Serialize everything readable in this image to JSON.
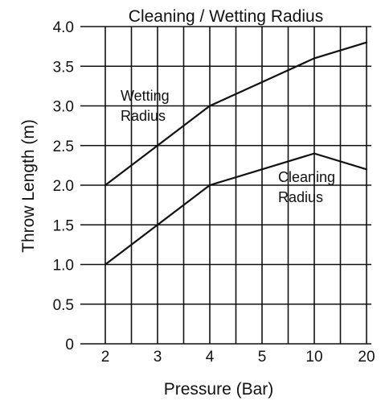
{
  "chart_data": {
    "type": "line",
    "title": "Cleaning / Wetting Radius",
    "xlabel": "Pressure (Bar)",
    "ylabel": "Throw Length (m)",
    "categories": [
      "2",
      "3",
      "4",
      "5",
      "10",
      "20"
    ],
    "ylim": [
      0,
      4.0
    ],
    "yticks": [
      "4.0",
      "3.5",
      "3.0",
      "2.5",
      "2.0",
      "1.5",
      "1.0",
      "0.5",
      "0"
    ],
    "grid": true,
    "series": [
      {
        "name": "Wetting Radius",
        "x": [
          "2",
          "3",
          "4",
          "5",
          "10",
          "20"
        ],
        "values": [
          2.0,
          2.5,
          3.0,
          3.3,
          3.6,
          3.8
        ]
      },
      {
        "name": "Cleaning Radius",
        "x": [
          "2",
          "3",
          "4",
          "5",
          "10",
          "20"
        ],
        "values": [
          1.0,
          1.5,
          2.0,
          2.2,
          2.4,
          2.2
        ]
      }
    ],
    "annotations": [
      {
        "series": "Wetting Radius",
        "lines": [
          "Wetting",
          "Radius"
        ]
      },
      {
        "series": "Cleaning Radius",
        "lines": [
          "Cleaning",
          "Radius"
        ]
      }
    ]
  }
}
